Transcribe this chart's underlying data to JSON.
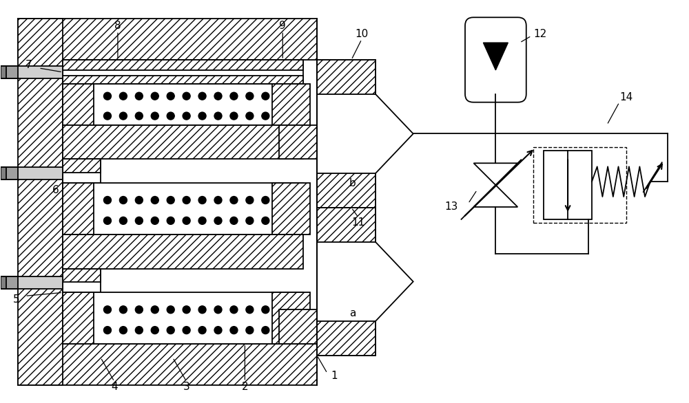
{
  "bg_color": "#ffffff",
  "line_color": "#000000",
  "fig_width": 10.0,
  "fig_height": 5.86,
  "lw": 1.3
}
